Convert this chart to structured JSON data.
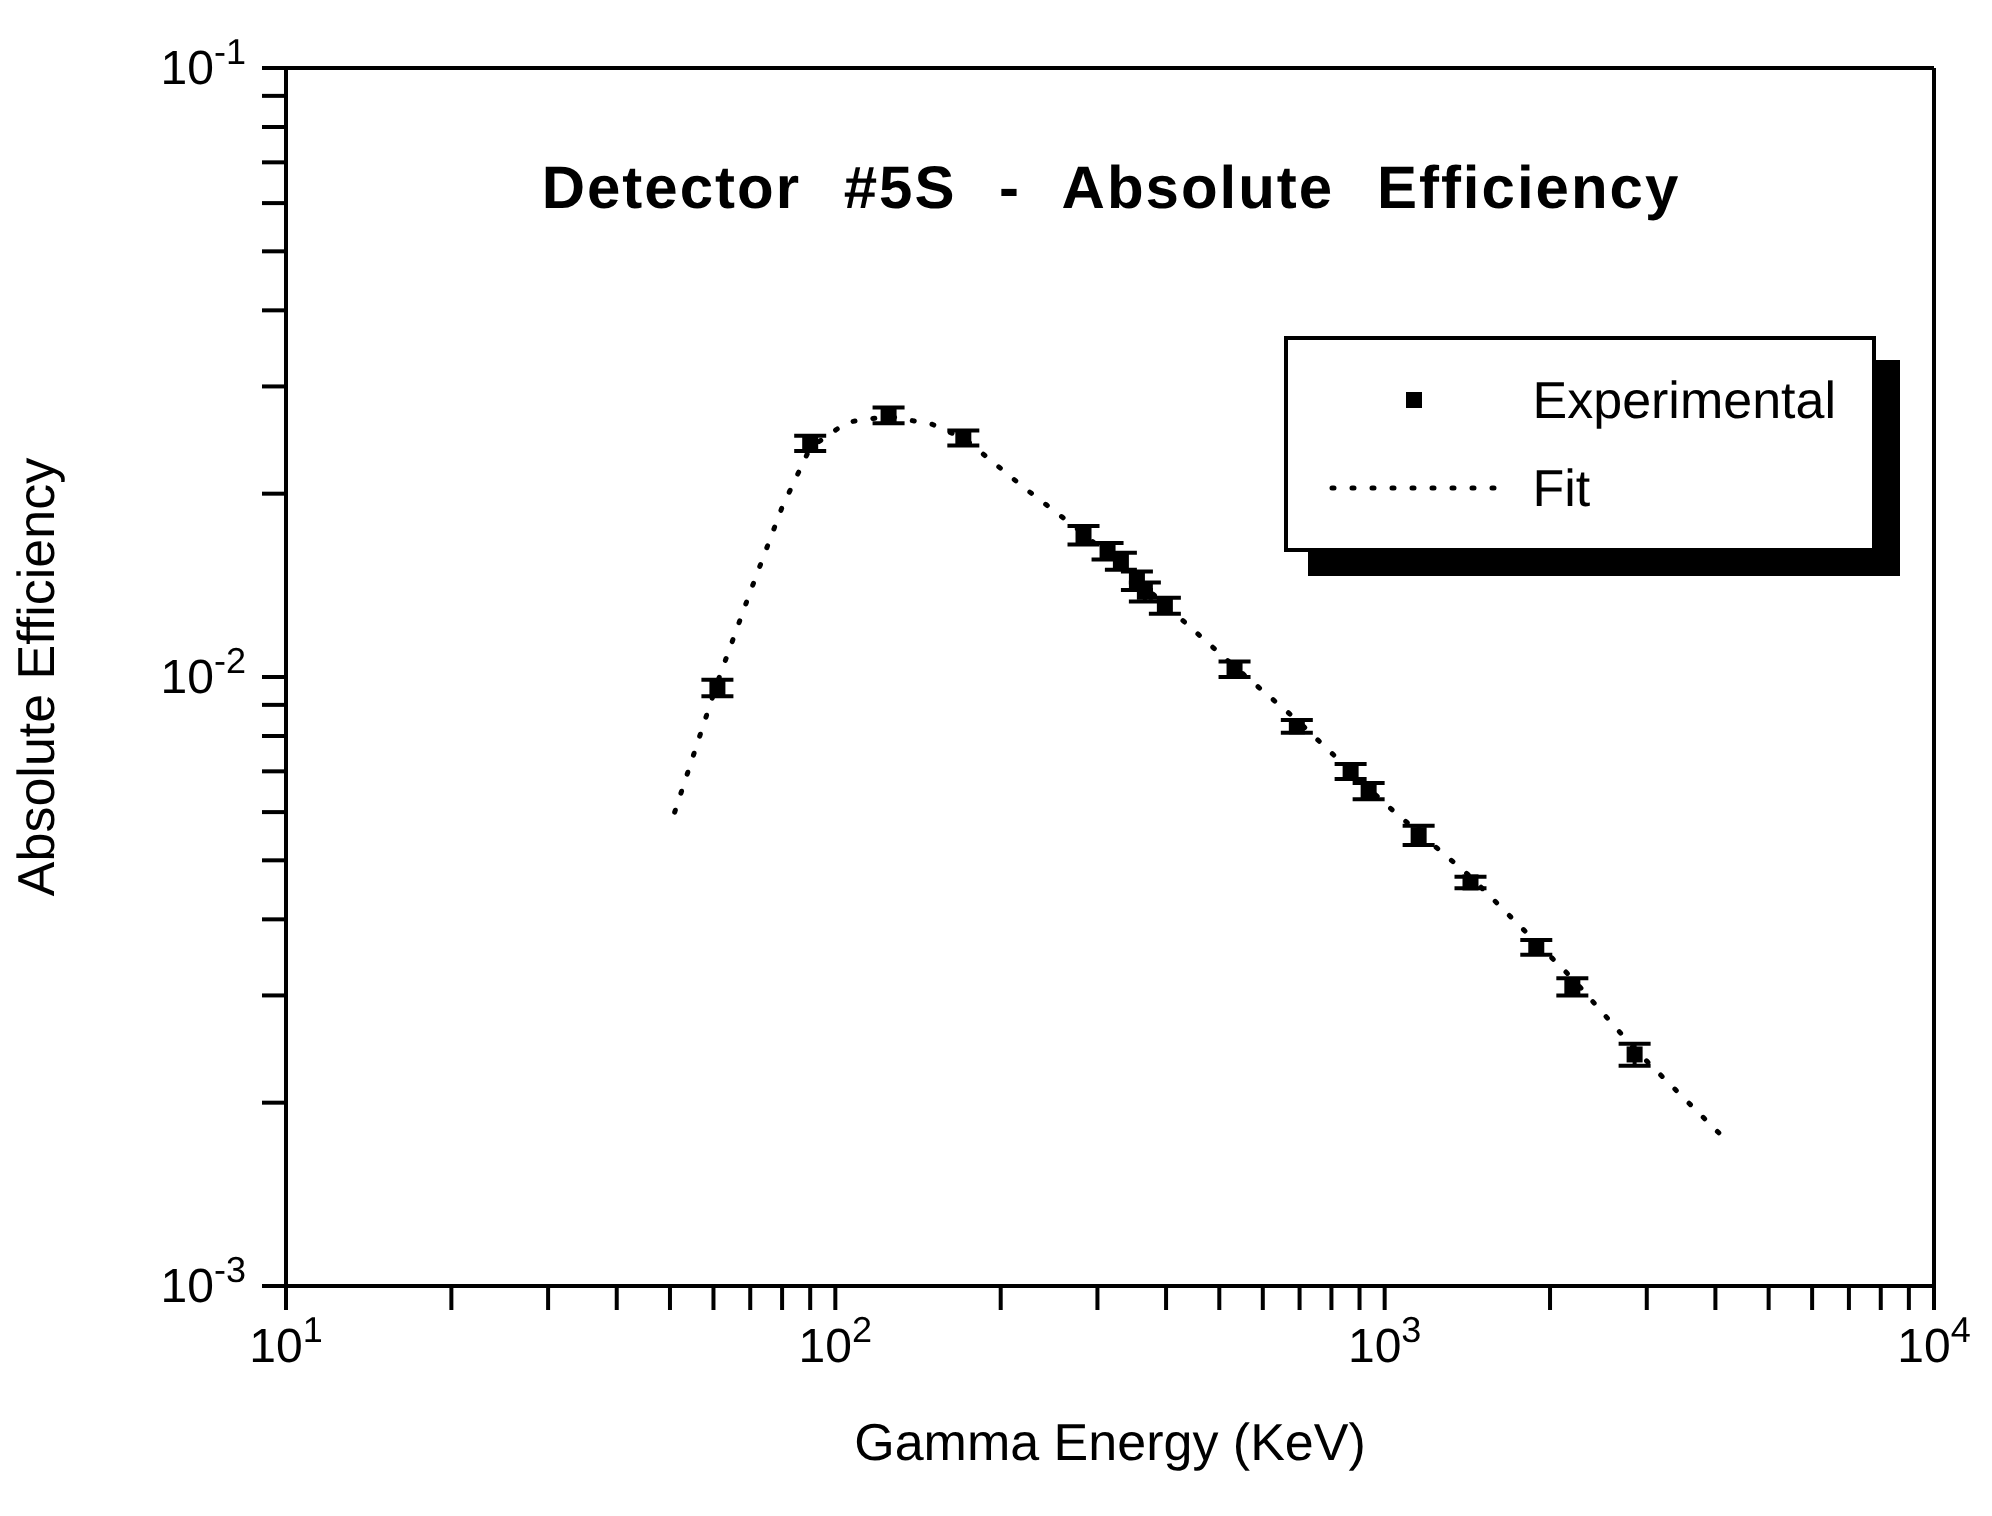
{
  "chart_data": {
    "type": "scatter",
    "title": "Detector #5S - Absolute Efficiency",
    "xlabel": "Gamma Energy (KeV)",
    "ylabel": "Absolute Efficiency",
    "log": "xy",
    "legend": "top right",
    "xlim": [
      10,
      10000
    ],
    "ylim": [
      0.001,
      0.1
    ],
    "xticks": [
      {
        "value": 10,
        "label": "10$^{1}$"
      },
      {
        "value": 20,
        "label": null
      },
      {
        "value": 30,
        "label": null
      },
      {
        "value": 40,
        "label": null
      },
      {
        "value": 50,
        "label": null
      },
      {
        "value": 60,
        "label": null
      },
      {
        "value": 70,
        "label": null
      },
      {
        "value": 80,
        "label": null
      },
      {
        "value": 90,
        "label": null
      },
      {
        "value": 100,
        "label": "10$^{2}$"
      },
      {
        "value": 200,
        "label": null
      },
      {
        "value": 300,
        "label": null
      },
      {
        "value": 400,
        "label": null
      },
      {
        "value": 500,
        "label": null
      },
      {
        "value": 600,
        "label": null
      },
      {
        "value": 700,
        "label": null
      },
      {
        "value": 800,
        "label": null
      },
      {
        "value": 900,
        "label": null
      },
      {
        "value": 1000,
        "label": "10$^{3}$"
      },
      {
        "value": 2000,
        "label": null
      },
      {
        "value": 3000,
        "label": null
      },
      {
        "value": 4000,
        "label": null
      },
      {
        "value": 5000,
        "label": null
      },
      {
        "value": 6000,
        "label": null
      },
      {
        "value": 7000,
        "label": null
      },
      {
        "value": 8000,
        "label": null
      },
      {
        "value": 9000,
        "label": null
      },
      {
        "value": 10000,
        "label": "10$^{4}$"
      }
    ],
    "yticks": [
      {
        "value": 0.001,
        "label": "10$^{-3}$"
      },
      {
        "value": 0.002,
        "label": null
      },
      {
        "value": 0.003,
        "label": null
      },
      {
        "value": 0.004,
        "label": null
      },
      {
        "value": 0.005,
        "label": null
      },
      {
        "value": 0.006,
        "label": null
      },
      {
        "value": 0.007,
        "label": null
      },
      {
        "value": 0.008,
        "label": null
      },
      {
        "value": 0.009,
        "label": null
      },
      {
        "value": 0.01,
        "label": "10$^{-2}$"
      },
      {
        "value": 0.02,
        "label": null
      },
      {
        "value": 0.03,
        "label": null
      },
      {
        "value": 0.04,
        "label": null
      },
      {
        "value": 0.05,
        "label": null
      },
      {
        "value": 0.06,
        "label": null
      },
      {
        "value": 0.07,
        "label": null
      },
      {
        "value": 0.08,
        "label": null
      },
      {
        "value": 0.09,
        "label": null
      },
      {
        "value": 0.1,
        "label": "10$^{-1}$"
      }
    ],
    "series": [
      {
        "name": "Experimental",
        "color": "#000000",
        "marker": "square",
        "x": [
          61,
          90,
          125,
          171,
          283,
          313,
          331,
          354,
          366,
          398,
          533,
          692,
          867,
          935,
          1153,
          1433,
          1888,
          2196,
          2851
        ],
        "values": [
          0.0096,
          0.0242,
          0.0269,
          0.0247,
          0.0171,
          0.0161,
          0.0155,
          0.0144,
          0.0138,
          0.0131,
          0.0103,
          0.0083,
          0.007,
          0.0065,
          0.0055,
          0.0046,
          0.0036,
          0.0031,
          0.0024
        ],
        "errors": [
          0.0003,
          0.0007,
          0.0008,
          0.0007,
          0.0006,
          0.0005,
          0.0005,
          0.0005,
          0.0005,
          0.0004,
          0.0003,
          0.0002,
          0.0002,
          0.0002,
          0.0002,
          0.0001,
          0.0001,
          0.0001,
          0.0001
        ]
      },
      {
        "name": "Fit",
        "type": "line",
        "color": "#000000",
        "line_style": "dotted",
        "x": [
          51,
          61,
          70,
          80,
          90,
          105,
          125,
          150,
          172,
          220,
          283,
          400,
          533,
          692,
          1000,
          1433,
          2196,
          2851,
          4120
        ],
        "values": [
          0.006,
          0.0098,
          0.0138,
          0.019,
          0.0238,
          0.0262,
          0.0268,
          0.026,
          0.0246,
          0.0205,
          0.0172,
          0.0131,
          0.0104,
          0.0085,
          0.0062,
          0.0047,
          0.0032,
          0.00245,
          0.00176
        ]
      }
    ]
  }
}
